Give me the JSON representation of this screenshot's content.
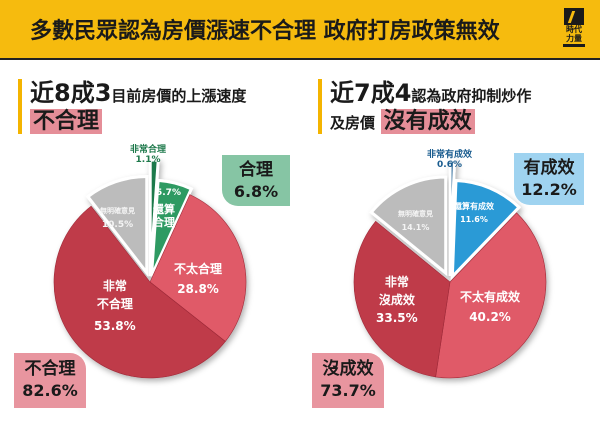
{
  "header": {
    "title": "多數民眾認為房價漲速不合理  政府打房政策無效",
    "logo_text_1": "時代",
    "logo_text_2": "力量",
    "logo_icon": "new-power-party-logo-icon"
  },
  "left_panel": {
    "headline_num": "近8成3",
    "headline_rest": "目前房價的上漲速度",
    "headline_highlight": "不合理",
    "summary_top": {
      "label": "合理",
      "value": "6.8%",
      "color": "#86c5a4"
    },
    "summary_bottom": {
      "label": "不合理",
      "value": "82.6%",
      "color": "#e8959f"
    },
    "slice_labels": {
      "very_reasonable": {
        "name": "非常合理",
        "value": "1.1%"
      },
      "fairly_reasonable": {
        "name_1": "還算",
        "name_2": "合理",
        "value": "5.7%"
      },
      "not_very_reasonable": {
        "name": "不太合理",
        "value": "28.8%"
      },
      "very_unreasonable": {
        "name_1": "非常",
        "name_2": "不合理",
        "value": "53.8%"
      },
      "no_opinion": {
        "name": "無明確意見",
        "value": "10.5%"
      }
    }
  },
  "right_panel": {
    "headline_num": "近7成4",
    "headline_rest": "認為政府抑制炒作",
    "headline_line2_prefix": "及房價",
    "headline_highlight": "沒有成效",
    "summary_top": {
      "label": "有成效",
      "value": "12.2%",
      "color": "#9fd3f0"
    },
    "summary_bottom": {
      "label": "沒成效",
      "value": "73.7%",
      "color": "#e8959f"
    },
    "slice_labels": {
      "very_effective": {
        "name": "非常有成效",
        "value": "0.6%"
      },
      "fairly_effective": {
        "name": "還算有成效",
        "value": "11.6%"
      },
      "not_very_effective": {
        "name": "不太有成效",
        "value": "40.2%"
      },
      "very_ineffective": {
        "name_1": "非常",
        "name_2": "沒成效",
        "value": "33.5%"
      },
      "no_opinion": {
        "name": "無明確意見",
        "value": "14.1%"
      }
    }
  },
  "chart_data": [
    {
      "type": "pie",
      "title": "近8成3目前房價的上漲速度不合理",
      "categories": [
        "非常合理",
        "還算合理",
        "不太合理",
        "非常不合理",
        "無明確意見"
      ],
      "values": [
        1.1,
        5.7,
        28.8,
        53.8,
        10.5
      ],
      "colors": [
        "#1f7a4c",
        "#2e9a62",
        "#e05a68",
        "#bf3a4a",
        "#bcbcbc"
      ],
      "groups": {
        "合理": 6.8,
        "不合理": 82.6
      },
      "legend": "none"
    },
    {
      "type": "pie",
      "title": "近7成4認為政府抑制炒作及房價沒有成效",
      "categories": [
        "非常有成效",
        "還算有成效",
        "不太有成效",
        "非常沒成效",
        "無明確意見"
      ],
      "values": [
        0.6,
        11.6,
        40.2,
        33.5,
        14.1
      ],
      "colors": [
        "#1a5c8f",
        "#2a9ad6",
        "#e05a68",
        "#bf3a4a",
        "#bcbcbc"
      ],
      "groups": {
        "有成效": 12.2,
        "沒成效": 73.7
      },
      "legend": "none"
    }
  ]
}
